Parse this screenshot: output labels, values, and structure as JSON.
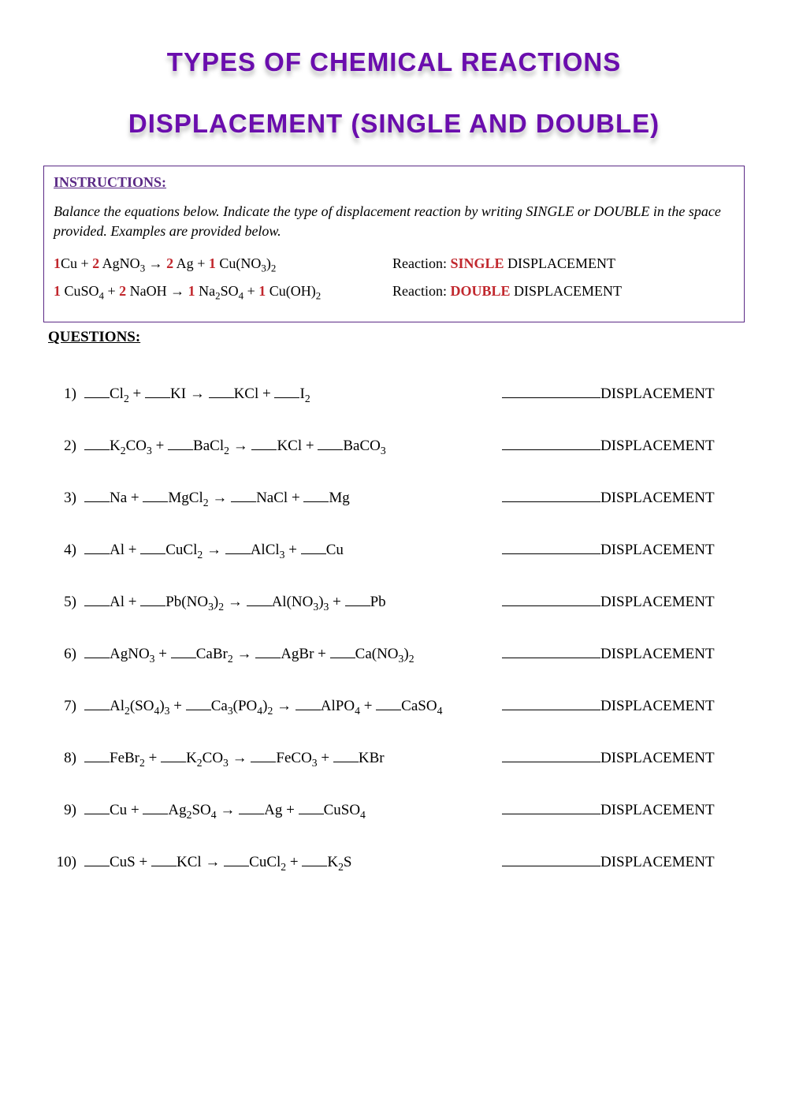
{
  "colors": {
    "title_fill": "#6a0dad",
    "shadow": "rgba(0,0,0,0.25)",
    "box_border": "#5b2a86",
    "instructions_head": "#5b2a86",
    "coef_red": "#c1272d",
    "text": "#000000",
    "bg": "#ffffff"
  },
  "typography": {
    "title_family": "Arial Black",
    "title_size_pt": 24,
    "body_family": "Georgia",
    "body_size_pt": 14,
    "italic_instructions": true
  },
  "header": {
    "line1": "TYPES OF CHEMICAL REACTIONS",
    "line2": "DISPLACEMENT (SINGLE AND DOUBLE)"
  },
  "instructions": {
    "heading": "INSTRUCTIONS:",
    "body": "Balance the equations below. Indicate the type of displacement reaction by writing SINGLE or DOUBLE in the space provided. Examples are provided below."
  },
  "examples": [
    {
      "reaction_label_prefix": "Reaction: ",
      "type_word": "SINGLE",
      "suffix": " DISPLACEMENT",
      "tokens": [
        {
          "coef": "1",
          "txt": "Cu"
        },
        {
          "op": " + "
        },
        {
          "coef": "2",
          "txt": " AgNO",
          "sub": "3"
        },
        {
          "op": " → "
        },
        {
          "coef": "2",
          "txt": " Ag"
        },
        {
          "op": " + "
        },
        {
          "coef": "1",
          "txt": " Cu(NO",
          "sub": "3",
          "tail": ")",
          "tailsub": "2"
        }
      ]
    },
    {
      "reaction_label_prefix": "Reaction: ",
      "type_word": "DOUBLE",
      "suffix": " DISPLACEMENT",
      "tokens": [
        {
          "coef": "1",
          "txt": " CuSO",
          "sub": "4"
        },
        {
          "op": " + "
        },
        {
          "coef": "2",
          "txt": " NaOH"
        },
        {
          "op": " → "
        },
        {
          "coef": "1",
          "txt": " Na",
          "sub": "2",
          "tail": "SO",
          "tailsub": "4"
        },
        {
          "op": " + "
        },
        {
          "coef": "1",
          "txt": " Cu(OH)",
          "sub": "2"
        }
      ]
    }
  ],
  "questions_heading": "QUESTIONS:",
  "displacement_suffix": "DISPLACEMENT",
  "blank_html_short": "___",
  "blank_html_long": "_____________",
  "questions": [
    {
      "n": "1)",
      "parts": [
        {
          "t": "Cl",
          "s": "2"
        },
        {
          "op": " + "
        },
        {
          "t": "KI"
        },
        {
          "op": "  → "
        },
        {
          "t": "KCl"
        },
        {
          "op": "  +  "
        },
        {
          "t": "I",
          "s": "2"
        }
      ]
    },
    {
      "n": "2)",
      "parts": [
        {
          "t": "K",
          "s": "2",
          "t2": "CO",
          "s2": "3"
        },
        {
          "op": " + "
        },
        {
          "t": "BaCl",
          "s": "2"
        },
        {
          "op": "  →  "
        },
        {
          "t": "KCl"
        },
        {
          "op": "  + "
        },
        {
          "t": "BaCO",
          "s": "3"
        }
      ]
    },
    {
      "n": "3)",
      "parts": [
        {
          "t": "Na"
        },
        {
          "op": " + "
        },
        {
          "t": "MgCl",
          "s": "2"
        },
        {
          "op": "  → "
        },
        {
          "t": "NaCl"
        },
        {
          "op": "  +  "
        },
        {
          "t": "Mg"
        }
      ]
    },
    {
      "n": "4)",
      "parts": [
        {
          "t": "Al"
        },
        {
          "op": " + "
        },
        {
          "t": "CuCl",
          "s": "2"
        },
        {
          "op": "  →  "
        },
        {
          "t": "AlCl",
          "s": "3"
        },
        {
          "op": "  +  "
        },
        {
          "t": "Cu"
        }
      ]
    },
    {
      "n": "5)",
      "parts": [
        {
          "t": "Al"
        },
        {
          "op": " + "
        },
        {
          "t": "Pb(NO",
          "s": "3",
          "t2": ")",
          "s2": "2"
        },
        {
          "op": "  →  "
        },
        {
          "t": "Al(NO",
          "s": "3",
          "t2": ")",
          "s2": "3"
        },
        {
          "op": "  +  "
        },
        {
          "t": "Pb"
        }
      ]
    },
    {
      "n": "6)",
      "parts": [
        {
          "t": "AgNO",
          "s": "3"
        },
        {
          "op": " + "
        },
        {
          "t": "CaBr",
          "s": "2"
        },
        {
          "op": "  →  "
        },
        {
          "t": "AgBr"
        },
        {
          "op": "  + "
        },
        {
          "t": "Ca(NO",
          "s": "3",
          "t2": ")",
          "s2": "2"
        }
      ]
    },
    {
      "n": "7)",
      "parts": [
        {
          "t": "Al",
          "s": "2",
          "t2": "(SO",
          "s2": "4",
          "t3": ")",
          "s3": "3"
        },
        {
          "op": " + "
        },
        {
          "t": "Ca",
          "s": "3",
          "t2": "(PO",
          "s2": "4",
          "t3": ")",
          "s3": "2"
        },
        {
          "op": "  → "
        },
        {
          "t": "AlPO",
          "s": "4"
        },
        {
          "op": "  + "
        },
        {
          "t": "CaSO",
          "s": "4"
        }
      ]
    },
    {
      "n": "8)",
      "parts": [
        {
          "t": "FeBr",
          "s": "2"
        },
        {
          "op": " + "
        },
        {
          "t": "K",
          "s": "2",
          "t2": "CO",
          "s2": "3"
        },
        {
          "op": "  →  "
        },
        {
          "t": "FeCO",
          "s": "3"
        },
        {
          "op": "  +  "
        },
        {
          "t": "KBr"
        }
      ]
    },
    {
      "n": "9)",
      "parts": [
        {
          "t": "Cu"
        },
        {
          "op": " + "
        },
        {
          "t": "Ag",
          "s": "2",
          "t2": "SO",
          "s2": "4"
        },
        {
          "op": " →  "
        },
        {
          "t": "Ag"
        },
        {
          "op": "  + "
        },
        {
          "t": "CuSO",
          "s": "4"
        }
      ]
    },
    {
      "n": "10)",
      "parts": [
        {
          "t": "CuS"
        },
        {
          "op": " + "
        },
        {
          "t": "KCl"
        },
        {
          "op": "  →  "
        },
        {
          "t": "CuCl",
          "s": "2"
        },
        {
          "op": "  +  "
        },
        {
          "t": "K",
          "s": "2",
          "t2": "S"
        }
      ]
    }
  ]
}
